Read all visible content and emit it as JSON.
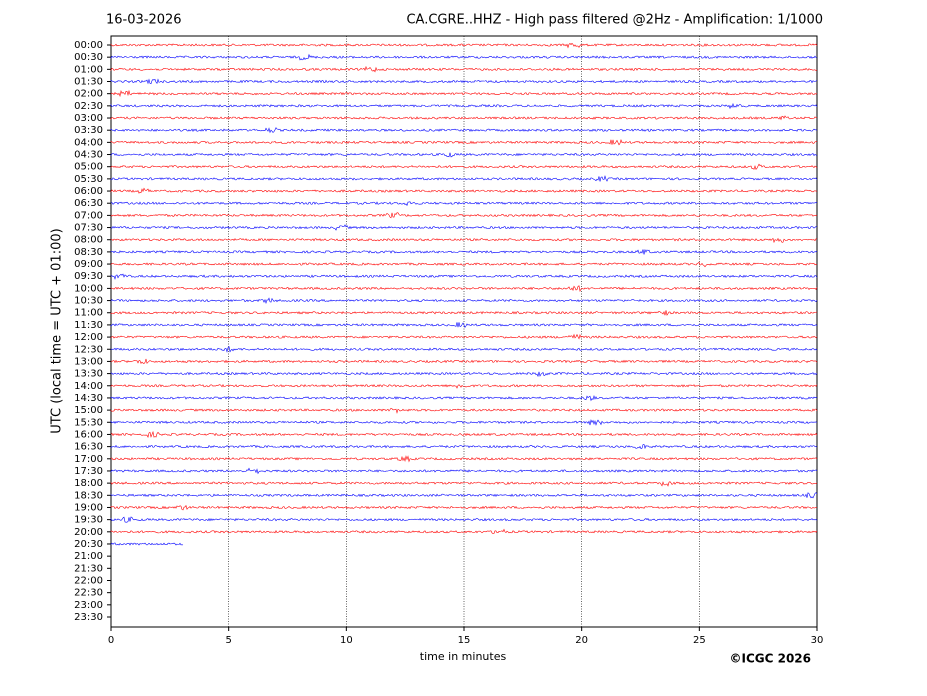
{
  "chart_data": {
    "type": "helicorder",
    "date": "16-03-2026",
    "title": "CA.CGRE..HHZ - High pass filtered @2Hz - Amplification: 1/1000",
    "xlabel": "time in minutes",
    "ylabel": "UTC (local time = UTC + 01:00)",
    "credit": "©ICGC 2026",
    "xlim": [
      0,
      30
    ],
    "xticks": [
      0,
      5,
      10,
      15,
      20,
      25,
      30
    ],
    "grid": true,
    "rows": [
      "00:00",
      "00:30",
      "01:00",
      "01:30",
      "02:00",
      "02:30",
      "03:00",
      "03:30",
      "04:00",
      "04:30",
      "05:00",
      "05:30",
      "06:00",
      "06:30",
      "07:00",
      "07:30",
      "08:00",
      "08:30",
      "09:00",
      "09:30",
      "10:00",
      "10:30",
      "11:00",
      "11:30",
      "12:00",
      "12:30",
      "13:00",
      "13:30",
      "14:00",
      "14:30",
      "15:00",
      "15:30",
      "16:00",
      "16:30",
      "17:00",
      "17:30",
      "18:00",
      "18:30",
      "19:00",
      "19:30",
      "20:00",
      "20:30",
      "21:00",
      "21:30",
      "22:00",
      "22:30",
      "23:00",
      "23:30"
    ],
    "colors": [
      "#ff0000",
      "#0000ff"
    ],
    "trace_end": [
      30,
      30,
      30,
      30,
      30,
      30,
      30,
      30,
      30,
      30,
      30,
      30,
      30,
      30,
      30,
      30,
      30,
      30,
      30,
      30,
      30,
      30,
      30,
      30,
      30,
      30,
      30,
      30,
      30,
      30,
      30,
      30,
      30,
      30,
      30,
      30,
      30,
      30,
      30,
      30,
      30,
      3.1
    ]
  }
}
